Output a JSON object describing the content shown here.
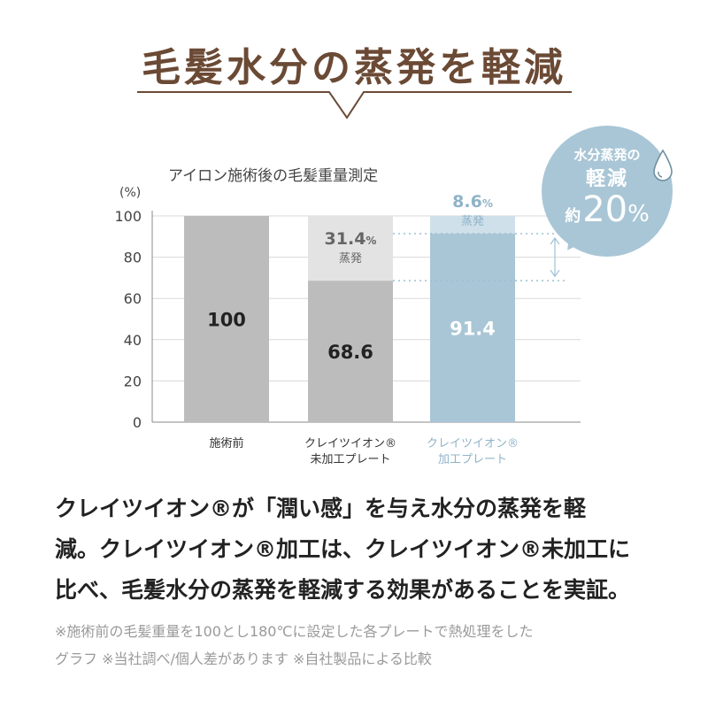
{
  "heading": "毛髪水分の蒸発を軽減",
  "chart_data": {
    "type": "bar",
    "title": "アイロン施術後の毛髪重量測定",
    "ylabel": "(%)",
    "ylim": [
      0,
      100
    ],
    "yticks": [
      "0",
      "20",
      "40",
      "60",
      "80",
      "100"
    ],
    "categories": [
      "施術前",
      "クレイツイオン®\n未加工プレート",
      "クレイツイオン®\n加工プレート"
    ],
    "series": [
      {
        "values": [
          100,
          68.6,
          91.4
        ]
      },
      {
        "values": [
          0,
          31.4,
          8.6
        ]
      }
    ],
    "value_labels": [
      "100",
      "68.6",
      "91.4"
    ],
    "evap_pct_labels": [
      "",
      "31.4",
      "8.6"
    ],
    "evap_unit": "%",
    "evap_word": "蒸発",
    "colors": {
      "bar_gray": "#bcbcbc",
      "bar_gray_top": "#e3e3e3",
      "bar_blue": "#a9c6d6",
      "bar_blue_top": "#cfe0ea",
      "accent_label_blue": "#8fb3c8",
      "brown": "#6b4a35"
    },
    "grid": true
  },
  "callout": {
    "line1": "水分蒸発の",
    "line2": "軽減",
    "prefix": "約",
    "value": "20",
    "unit": "%"
  },
  "icons": {
    "drop": "water-drop-icon"
  },
  "description": {
    "line1": "クレイツイオン®が「潤い感」を与え水分の蒸発を軽",
    "line2": "減。クレイツイオン®加工は、クレイツイオン®未加工に",
    "line3": "比べ、毛髪水分の蒸発を軽減する効果があることを実証。"
  },
  "footnote": {
    "line1": "※施術前の毛髪重量を100とし180℃に設定した各プレートで熱処理をした",
    "line2": "グラフ ※当社調べ/個人差があります ※自社製品による比較"
  }
}
